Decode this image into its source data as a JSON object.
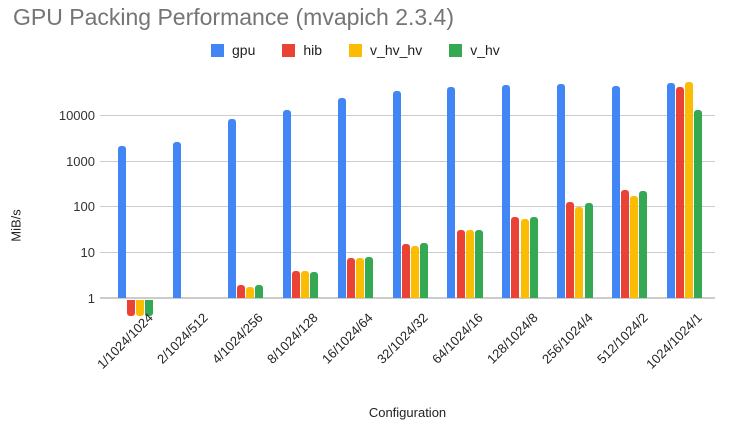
{
  "chart_data": {
    "type": "bar",
    "title": "GPU Packing Performance (mvapich 2.3.4)",
    "xlabel": "Configuration",
    "ylabel": "MiB/s",
    "y_scale": "log",
    "y_ticks": [
      1,
      10,
      100,
      1000,
      10000
    ],
    "ylim": [
      0.4,
      60000
    ],
    "grid": true,
    "legend_position": "top",
    "categories": [
      "1/1024/1024",
      "2/1024/512",
      "4/1024/256",
      "8/1024/128",
      "16/1024/64",
      "32/1024/32",
      "64/1024/16",
      "128/1024/8",
      "256/1024/4",
      "512/1024/2",
      "1024/1024/1"
    ],
    "series": [
      {
        "name": "gpu",
        "color": "#4285F4",
        "values": [
          2100,
          2600,
          8000,
          12500,
          23000,
          33000,
          40000,
          45000,
          47000,
          42000,
          49000
        ]
      },
      {
        "name": "hib",
        "color": "#EA4335",
        "values": [
          0.45,
          1,
          1.9,
          3.8,
          7.6,
          15,
          30,
          60,
          122,
          230,
          41000
        ]
      },
      {
        "name": "v_hv_hv",
        "color": "#FBBC04",
        "values": [
          0.45,
          1,
          1.75,
          3.8,
          7.5,
          14,
          30,
          52,
          98,
          170,
          52000
        ]
      },
      {
        "name": "v_hv",
        "color": "#34A853",
        "values": [
          0.45,
          1,
          1.9,
          3.7,
          7.8,
          15.5,
          31,
          59,
          120,
          215,
          13000
        ]
      }
    ]
  },
  "colors": {
    "title": "#757575",
    "axis_label": "#222222",
    "tick_label": "#333333",
    "gridline": "#cccccc"
  }
}
